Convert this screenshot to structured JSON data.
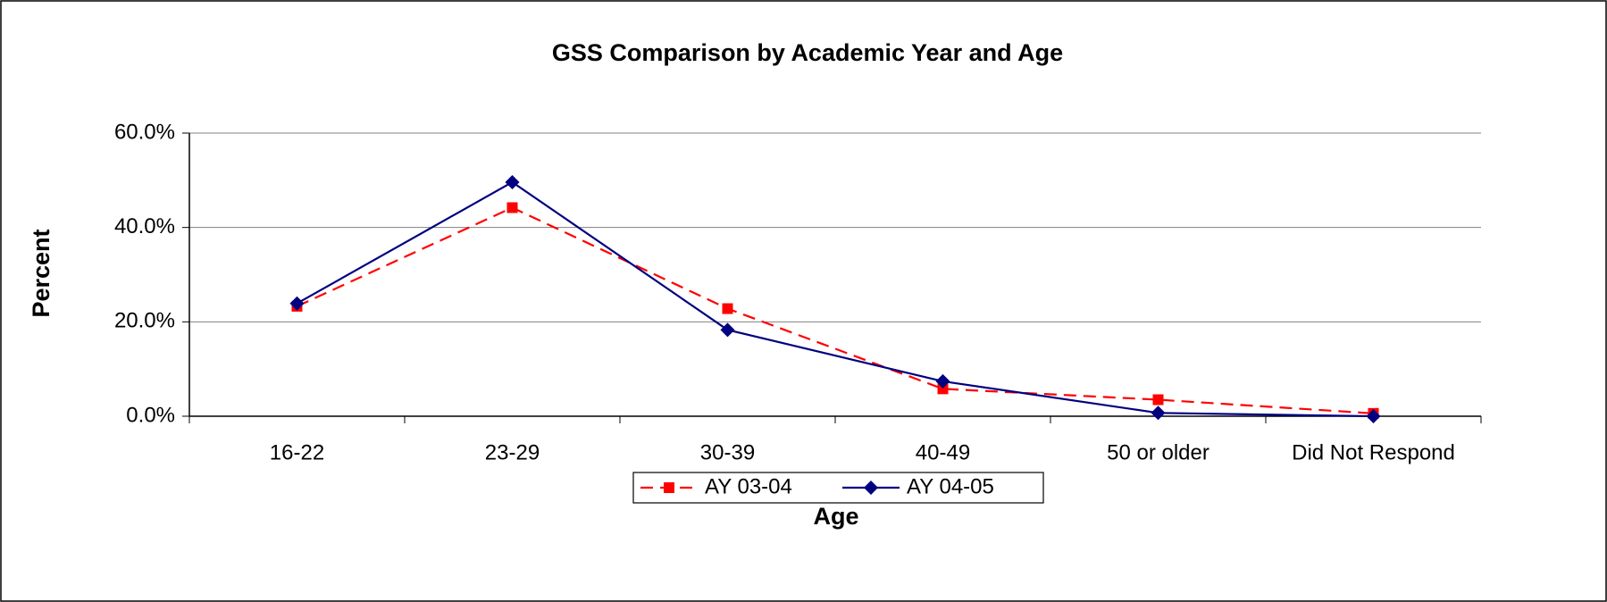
{
  "chart_data": {
    "type": "line",
    "title": "GSS Comparison by Academic Year and Age",
    "x_label": "Age",
    "y_label": "Percent",
    "categories": [
      "16-22",
      "23-29",
      "30-39",
      "40-49",
      "50 or older",
      "Did Not Respond"
    ],
    "series": [
      {
        "name": "AY 03-04",
        "color": "#ff0000",
        "dash": true,
        "marker": "square",
        "values": [
          23.3,
          44.2,
          22.8,
          5.8,
          3.5,
          0.6
        ]
      },
      {
        "name": "AY 04-05",
        "color": "#000080",
        "dash": false,
        "marker": "diamond",
        "values": [
          23.9,
          49.6,
          18.3,
          7.4,
          0.7,
          0.0
        ]
      }
    ],
    "ylim": [
      0,
      60
    ],
    "yticks": [
      {
        "value": 0,
        "label": "0.0%"
      },
      {
        "value": 20,
        "label": "20.0%"
      },
      {
        "value": 40,
        "label": "40.0%"
      },
      {
        "value": 60,
        "label": "60.0%"
      }
    ],
    "grid": true,
    "legend": "bottom"
  }
}
